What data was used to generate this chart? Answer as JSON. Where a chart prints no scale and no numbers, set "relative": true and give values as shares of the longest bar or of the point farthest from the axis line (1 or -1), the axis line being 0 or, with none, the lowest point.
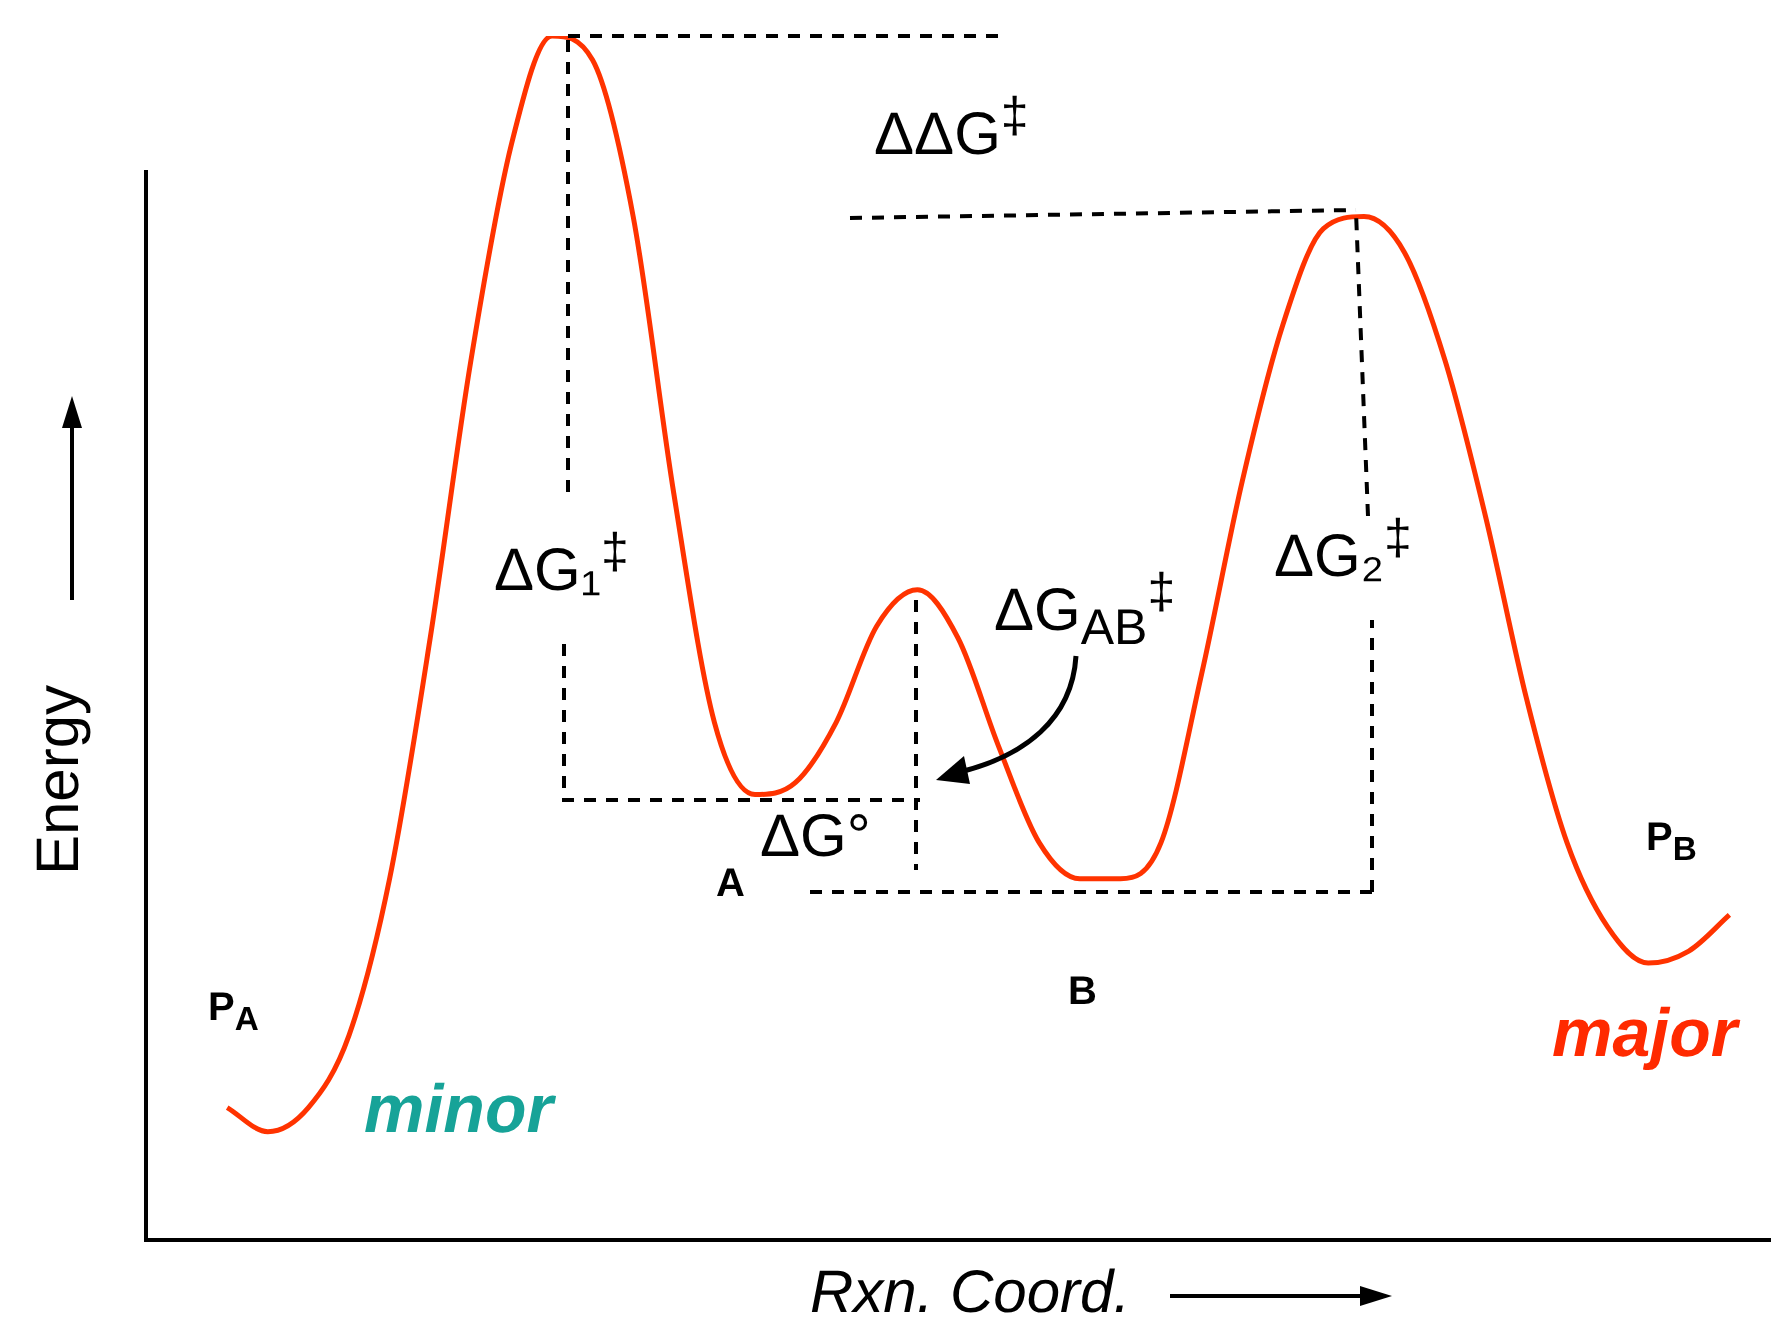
{
  "chart_data": {
    "type": "line",
    "relative": true,
    "xlabel": "Rxn. Coord.",
    "ylabel": "Energy",
    "grid": false,
    "legend": false,
    "marker": "none",
    "line_style": "solid",
    "categories": [
      null,
      null,
      null,
      null,
      null,
      null,
      null,
      null,
      null,
      null,
      null,
      null,
      null,
      null,
      null,
      null,
      null,
      null,
      null,
      null,
      null,
      null,
      null,
      null,
      null,
      null,
      null,
      null,
      null,
      null,
      null,
      null,
      null,
      null,
      null,
      null,
      null,
      null,
      null,
      null,
      null
    ],
    "series": [
      {
        "color": "#ff3300",
        "values": [
          null,
          null,
          0.11,
          0.09,
          0.11,
          0.17,
          0.3,
          0.5,
          0.73,
          0.91,
          1,
          0.98,
          0.85,
          0.62,
          0.43,
          0.37,
          0.38,
          0.43,
          0.51,
          0.54,
          0.5,
          0.41,
          0.33,
          0.3,
          0.3,
          0.33,
          0.47,
          0.63,
          0.76,
          0.84,
          0.85,
          0.82,
          0.73,
          0.6,
          0.45,
          0.33,
          0.26,
          0.23,
          0.24,
          0.27,
          null
        ]
      }
    ],
    "annotations": [
      "ΔΔG$^{‡}$",
      "ΔG₁$^{‡}$",
      "ΔG$_{AB}$$^{‡}$",
      "ΔG₂$^{‡}$",
      "ΔG°",
      "A",
      "B",
      "P$_{A}$",
      "P$_{B}$",
      "minor",
      "major"
    ]
  }
}
